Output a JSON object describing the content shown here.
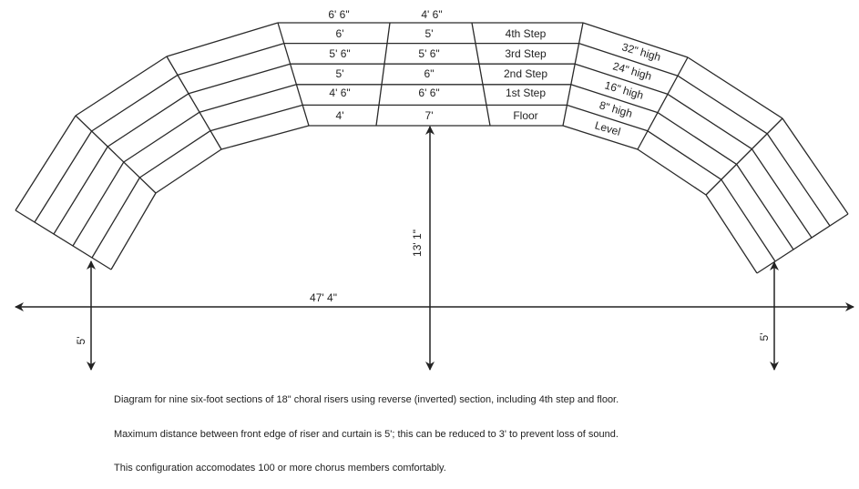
{
  "column_headers": [
    "6' 6\"",
    "4' 6\""
  ],
  "col1": [
    "6'",
    "5' 6\"",
    "5'",
    "4' 6\"",
    "4'"
  ],
  "col2": [
    "5'",
    "5' 6\"",
    "6\"",
    "6' 6\"",
    "7'"
  ],
  "steps": [
    "4th Step",
    "3rd Step",
    "2nd Step",
    "1st Step",
    "Floor"
  ],
  "heights": [
    "32\" high",
    "24\" high",
    "16\" high",
    "8\" high",
    "Level"
  ],
  "dimensions": {
    "width": "47' 4\"",
    "depth": "13' 1\"",
    "left_gap": "5'",
    "right_gap": "5'"
  },
  "captions": [
    "Diagram for nine six-foot sections of 18\" choral risers using reverse (inverted) section, including 4th step and floor.",
    "Maximum distance between front edge of riser and curtain is 5'; this can be reduced to 3' to prevent loss of sound.",
    "This configuration accomodates 100 or more chorus members comfortably."
  ],
  "line_color": "#2a2a2a"
}
